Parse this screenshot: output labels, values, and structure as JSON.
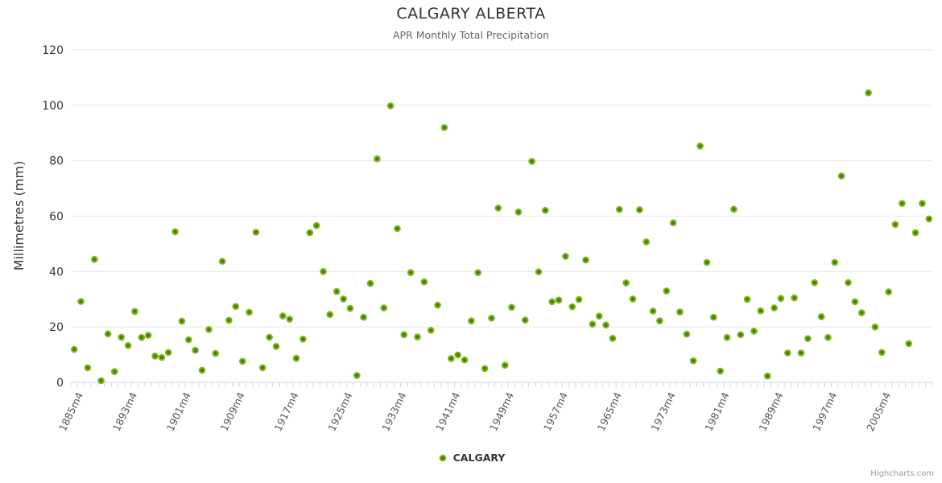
{
  "header": {
    "title": "CALGARY ALBERTA",
    "subtitle": "APR Monthly Total Precipitation"
  },
  "y_axis": {
    "title": "Millimetres (mm)"
  },
  "legend": {
    "label": "CALGARY"
  },
  "credit": {
    "label": "Highcharts.com"
  },
  "colors": {
    "point_fill": "#48790a",
    "point_stroke": "#7cb41c",
    "grid": "#e6e6e6",
    "axis": "#ccd6eb",
    "title_text": "#333333",
    "subtitle_text": "#666666",
    "y_label_text": "#333333",
    "x_label_text": "#555555",
    "credit_text": "#999999"
  },
  "chart_data": {
    "type": "scatter",
    "title": "CALGARY ALBERTA",
    "subtitle": "APR Monthly Total Precipitation",
    "xlabel": "",
    "ylabel": "Millimetres (mm)",
    "ylim": [
      0,
      120
    ],
    "ytick_interval": 20,
    "grid": "horizontal",
    "legend_position": "bottom",
    "x_suffix": "m4",
    "xtick_labels": [
      "1885m4",
      "1893m4",
      "1901m4",
      "1909m4",
      "1917m4",
      "1925m4",
      "1933m4",
      "1941m4",
      "1949m4",
      "1957m4",
      "1965m4",
      "1973m4",
      "1981m4",
      "1989m4",
      "1997m4",
      "2005m4"
    ],
    "xtick_start_index": 1,
    "xtick_step": 8,
    "series": [
      {
        "name": "CALGARY",
        "x": [
          1884,
          1885,
          1886,
          1887,
          1888,
          1889,
          1890,
          1891,
          1892,
          1893,
          1894,
          1895,
          1896,
          1897,
          1898,
          1899,
          1900,
          1901,
          1902,
          1903,
          1904,
          1905,
          1906,
          1907,
          1908,
          1909,
          1910,
          1911,
          1912,
          1913,
          1914,
          1915,
          1916,
          1917,
          1918,
          1919,
          1920,
          1921,
          1922,
          1923,
          1924,
          1925,
          1926,
          1927,
          1928,
          1929,
          1930,
          1931,
          1932,
          1933,
          1934,
          1935,
          1936,
          1937,
          1938,
          1939,
          1940,
          1941,
          1942,
          1943,
          1944,
          1945,
          1946,
          1947,
          1948,
          1949,
          1950,
          1951,
          1952,
          1953,
          1954,
          1955,
          1956,
          1957,
          1958,
          1959,
          1960,
          1961,
          1962,
          1963,
          1964,
          1965,
          1966,
          1967,
          1968,
          1969,
          1970,
          1971,
          1972,
          1973,
          1974,
          1975,
          1976,
          1977,
          1978,
          1979,
          1980,
          1981,
          1982,
          1983,
          1984,
          1985,
          1986,
          1987,
          1988,
          1989,
          1990,
          1991,
          1992,
          1993,
          1994,
          1995,
          1996,
          1997,
          1998,
          1999,
          2000,
          2001,
          2002,
          2003,
          2004,
          2005,
          2006,
          2007,
          2008,
          2009,
          2010,
          2011
        ],
        "values": [
          11.9,
          29.2,
          5.3,
          44.4,
          0.6,
          17.5,
          3.9,
          16.3,
          13.3,
          25.6,
          16.2,
          17.0,
          9.5,
          9.0,
          10.8,
          54.4,
          22.1,
          15.4,
          11.6,
          4.4,
          19.1,
          10.5,
          43.7,
          22.4,
          27.4,
          7.6,
          25.3,
          54.2,
          5.3,
          16.3,
          13.0,
          24.0,
          22.8,
          8.7,
          15.6,
          54.0,
          56.6,
          40.0,
          24.5,
          32.8,
          30.1,
          26.7,
          2.5,
          23.5,
          35.7,
          80.7,
          26.9,
          99.8,
          55.5,
          17.2,
          39.6,
          16.4,
          36.3,
          18.8,
          27.9,
          92.0,
          8.6,
          9.9,
          8.1,
          22.2,
          39.6,
          5.0,
          23.2,
          62.9,
          6.2,
          27.1,
          61.5,
          22.5,
          79.8,
          39.9,
          62.1,
          29.1,
          29.7,
          45.5,
          27.3,
          29.9,
          44.2,
          21.0,
          23.9,
          20.7,
          15.9,
          62.4,
          35.9,
          30.1,
          62.3,
          50.7,
          25.7,
          22.2,
          33.0,
          57.6,
          25.4,
          17.4,
          7.8,
          85.3,
          43.3,
          23.5,
          4.1,
          16.2,
          62.5,
          17.2,
          30.0,
          18.5,
          25.8,
          2.3,
          26.9,
          30.3,
          10.6,
          30.5,
          10.6,
          15.8,
          36.0,
          23.7,
          16.2,
          43.3,
          74.5,
          36.0,
          29.1,
          25.1,
          104.5,
          20.0,
          10.8,
          32.7,
          57.0,
          64.6,
          14.0,
          54.0,
          64.6,
          59.0
        ]
      }
    ]
  }
}
